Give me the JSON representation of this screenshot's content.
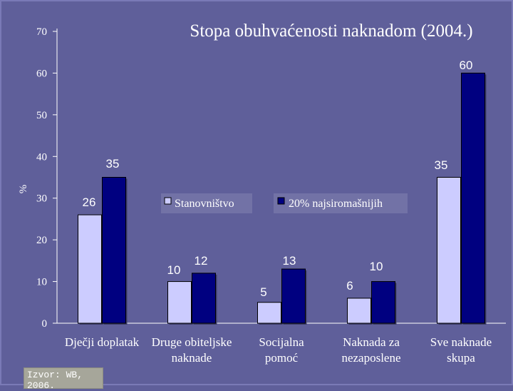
{
  "chart_data": {
    "type": "bar",
    "title": "Stopa obuhvaćenosti naknadom (2004.)",
    "ylabel": "%",
    "ylim": [
      0,
      70
    ],
    "yticks": [
      "0",
      "10",
      "20",
      "30",
      "40",
      "50",
      "60",
      "70"
    ],
    "categories": [
      [
        "Dječji doplatak"
      ],
      [
        "Druge obiteljske",
        "naknade"
      ],
      [
        "Socijalna",
        "pomoć"
      ],
      [
        "Naknada za",
        "nezaposlene"
      ],
      [
        "Sve naknade",
        "skupa"
      ]
    ],
    "series": [
      {
        "name": "Stanovništvo",
        "values": [
          26,
          10,
          5,
          6,
          35
        ],
        "color": "#ccccff"
      },
      {
        "name": "20% najsiromašnijih",
        "values": [
          35,
          12,
          13,
          10,
          60
        ],
        "color": "#000080"
      }
    ],
    "grid": false,
    "legend": "center"
  },
  "source": "Izvor: WB, 2006."
}
